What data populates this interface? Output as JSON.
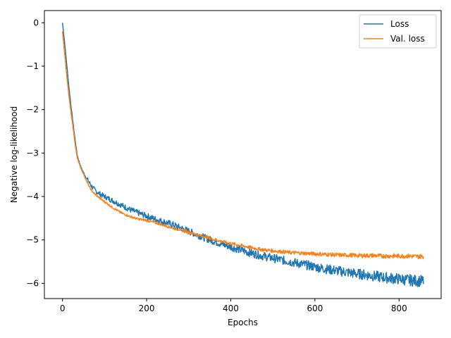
{
  "chart_data": {
    "type": "line",
    "title": "",
    "xlabel": "Epochs",
    "ylabel": "Negative log-likelihood",
    "xlim": [
      -43,
      900
    ],
    "ylim": [
      -6.35,
      0.28
    ],
    "xticks": [
      0,
      200,
      400,
      600,
      800
    ],
    "yticks": [
      0,
      -1,
      -2,
      -3,
      -4,
      -5,
      -6
    ],
    "xtick_labels": [
      "0",
      "200",
      "400",
      "600",
      "800"
    ],
    "ytick_labels": [
      "0",
      "−1",
      "−2",
      "−3",
      "−4",
      "−5",
      "−6"
    ],
    "grid": false,
    "legend": {
      "placement": "top-right"
    },
    "series": [
      {
        "name": "Loss",
        "color": "#1f77b4",
        "noise": 0.05,
        "x": [
          0,
          5,
          10,
          15,
          20,
          25,
          30,
          35,
          40,
          45,
          50,
          55,
          60,
          65,
          70,
          75,
          80,
          90,
          100,
          120,
          140,
          160,
          180,
          200,
          220,
          240,
          260,
          280,
          300,
          320,
          340,
          360,
          380,
          400,
          420,
          440,
          460,
          480,
          500,
          520,
          540,
          560,
          580,
          600,
          620,
          640,
          660,
          680,
          700,
          720,
          740,
          760,
          780,
          800,
          820,
          840,
          858
        ],
        "y": [
          0.0,
          -0.45,
          -0.95,
          -1.45,
          -1.9,
          -2.3,
          -2.7,
          -3.05,
          -3.22,
          -3.35,
          -3.45,
          -3.55,
          -3.62,
          -3.7,
          -3.77,
          -3.83,
          -3.88,
          -3.95,
          -4.0,
          -4.1,
          -4.2,
          -4.3,
          -4.38,
          -4.45,
          -4.52,
          -4.58,
          -4.64,
          -4.72,
          -4.8,
          -4.88,
          -4.96,
          -5.03,
          -5.1,
          -5.16,
          -5.22,
          -5.28,
          -5.33,
          -5.38,
          -5.42,
          -5.46,
          -5.5,
          -5.54,
          -5.58,
          -5.62,
          -5.66,
          -5.69,
          -5.72,
          -5.75,
          -5.78,
          -5.8,
          -5.83,
          -5.86,
          -5.88,
          -5.9,
          -5.92,
          -5.94,
          -5.95
        ]
      },
      {
        "name": "Val. loss",
        "color": "#ff7f0e",
        "noise": 0.02,
        "x": [
          0,
          5,
          10,
          15,
          20,
          25,
          30,
          35,
          40,
          45,
          50,
          55,
          60,
          65,
          70,
          75,
          80,
          90,
          100,
          120,
          140,
          160,
          180,
          200,
          220,
          240,
          260,
          280,
          300,
          320,
          340,
          360,
          380,
          400,
          420,
          440,
          460,
          480,
          500,
          520,
          540,
          560,
          580,
          600,
          620,
          640,
          660,
          680,
          700,
          720,
          740,
          760,
          780,
          800,
          820,
          840,
          858
        ],
        "y": [
          -0.2,
          -0.7,
          -1.2,
          -1.65,
          -2.05,
          -2.4,
          -2.8,
          -3.1,
          -3.25,
          -3.38,
          -3.48,
          -3.6,
          -3.7,
          -3.8,
          -3.87,
          -3.93,
          -3.97,
          -4.05,
          -4.12,
          -4.26,
          -4.38,
          -4.46,
          -4.52,
          -4.55,
          -4.6,
          -4.66,
          -4.72,
          -4.77,
          -4.82,
          -4.88,
          -4.93,
          -4.99,
          -5.04,
          -5.08,
          -5.12,
          -5.16,
          -5.2,
          -5.23,
          -5.25,
          -5.27,
          -5.29,
          -5.3,
          -5.31,
          -5.32,
          -5.33,
          -5.34,
          -5.35,
          -5.35,
          -5.36,
          -5.36,
          -5.36,
          -5.37,
          -5.37,
          -5.37,
          -5.37,
          -5.38,
          -5.38
        ]
      }
    ]
  }
}
